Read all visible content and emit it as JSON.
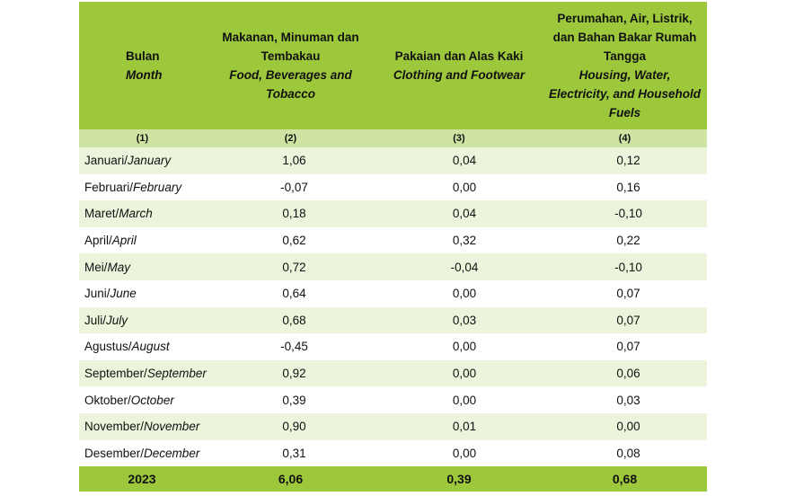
{
  "table": {
    "headers": [
      {
        "lines": [
          "Bulan"
        ],
        "italic_lines": [
          "Month"
        ]
      },
      {
        "lines": [
          "Makanan, Minuman dan",
          "Tembakau"
        ],
        "italic_lines": [
          "Food, Beverages and",
          "Tobacco"
        ]
      },
      {
        "lines": [
          "Pakaian dan Alas Kaki"
        ],
        "italic_lines": [
          "Clothing and Footwear"
        ]
      },
      {
        "lines": [
          "Perumahan, Air, Listrik,",
          "dan Bahan Bakar Rumah",
          "Tangga"
        ],
        "italic_lines": [
          "Housing, Water,",
          "Electricity, and Household",
          "Fuels"
        ]
      }
    ],
    "column_numbers": [
      "(1)",
      "(2)",
      "(3)",
      "(4)"
    ],
    "rows": [
      {
        "month_id": "Januari",
        "month_en": "January",
        "food": "1,06",
        "clothing": "0,04",
        "housing": "0,12"
      },
      {
        "month_id": "Februari",
        "month_en": "February",
        "food": "-0,07",
        "clothing": "0,00",
        "housing": "0,16"
      },
      {
        "month_id": "Maret",
        "month_en": "March",
        "food": "0,18",
        "clothing": "0,04",
        "housing": "-0,10"
      },
      {
        "month_id": "April",
        "month_en": "April",
        "food": "0,62",
        "clothing": "0,32",
        "housing": "0,22"
      },
      {
        "month_id": "Mei",
        "month_en": "May",
        "food": "0,72",
        "clothing": "-0,04",
        "housing": "-0,10"
      },
      {
        "month_id": "Juni",
        "month_en": "June",
        "food": "0,64",
        "clothing": "0,00",
        "housing": "0,07"
      },
      {
        "month_id": "Juli",
        "month_en": "July",
        "food": "0,68",
        "clothing": "0,03",
        "housing": "0,07"
      },
      {
        "month_id": "Agustus",
        "month_en": "August",
        "food": "-0,45",
        "clothing": "0,00",
        "housing": "0,07"
      },
      {
        "month_id": "September",
        "month_en": "September",
        "food": "0,92",
        "clothing": "0,00",
        "housing": "0,06"
      },
      {
        "month_id": "Oktober",
        "month_en": "October",
        "food": "0,39",
        "clothing": "0,00",
        "housing": "0,03"
      },
      {
        "month_id": "November",
        "month_en": "November",
        "food": "0,90",
        "clothing": "0,01",
        "housing": "0,00"
      },
      {
        "month_id": "Desember",
        "month_en": "December",
        "food": "0,31",
        "clothing": "0,00",
        "housing": "0,08"
      }
    ],
    "total": {
      "label": "2023",
      "food": "6,06",
      "clothing": "0,39",
      "housing": "0,68"
    }
  },
  "colors": {
    "header_green": "#9dc83c",
    "subheader_green": "#cfe3a3",
    "row_stripe": "#ecf4dc"
  }
}
